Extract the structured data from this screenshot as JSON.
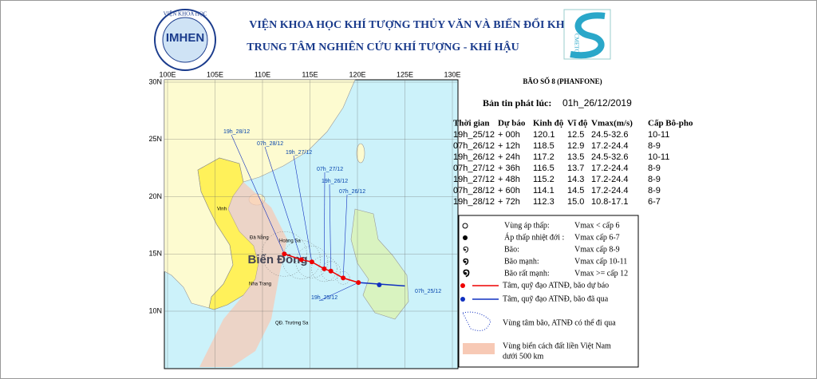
{
  "header": {
    "institute": "VIỆN KHOA HỌC KHÍ TƯỢNG THỦY VĂN VÀ BIẾN ĐỔI KHÍ HẬU",
    "center": "TRUNG TÂM NGHIÊN CỨU KHÍ TƯỢNG - KHÍ HẬU",
    "logo_left": "IMHEN",
    "logo_ring": "VIỆN KHOA HỌC",
    "logo_right": "CMETC"
  },
  "bulletin": {
    "title": "BÃO SỐ 8 (PHANFONE)",
    "issued_label": "Bản tin phát lúc:",
    "issued_time": "01h_26/12/2019"
  },
  "table": {
    "headers": [
      "Thời gian",
      "Dự báo",
      "Kinh độ",
      "Vĩ độ",
      "Vmax(m/s)",
      "Cấp Bô-pho"
    ],
    "rows": [
      [
        "19h_25/12",
        "+ 00h",
        "120.1",
        "12.5",
        "24.5-32.6",
        "10-11"
      ],
      [
        "07h_26/12",
        "+ 12h",
        "118.5",
        "12.9",
        "17.2-24.4",
        "8-9"
      ],
      [
        "19h_26/12",
        "+ 24h",
        "117.2",
        "13.5",
        "24.5-32.6",
        "10-11"
      ],
      [
        "07h_27/12",
        "+ 36h",
        "116.5",
        "13.7",
        "17.2-24.4",
        "8-9"
      ],
      [
        "19h_27/12",
        "+ 48h",
        "115.2",
        "14.3",
        "17.2-24.4",
        "8-9"
      ],
      [
        "07h_28/12",
        "+ 60h",
        "114.1",
        "14.5",
        "17.2-24.4",
        "8-9"
      ],
      [
        "19h_28/12",
        "+ 72h",
        "112.3",
        "15.0",
        "10.8-17.1",
        "6-7"
      ]
    ]
  },
  "map": {
    "lon_labels": [
      "100E",
      "105E",
      "110E",
      "115E",
      "120E",
      "125E",
      "130E"
    ],
    "lat_labels": [
      "30N",
      "25N",
      "20N",
      "15N",
      "10N"
    ],
    "places": [
      "Biển Đông",
      "Đà Nẵng",
      "Hoàng Sa",
      "Nha Trang",
      "Vinh",
      "QĐ. Trường Sa"
    ],
    "past_time": "07h_25/12"
  },
  "legend": {
    "items": [
      [
        "Vùng áp thấp:",
        "Vmax < cấp 6"
      ],
      [
        "Áp thấp nhiệt đới :",
        "Vmax cấp 6-7"
      ],
      [
        "Bão:",
        "Vmax cấp 8-9"
      ],
      [
        "Bão mạnh:",
        "Vmax cấp 10-11"
      ],
      [
        "Bão rất mạnh:",
        "Vmax >= cấp 12"
      ]
    ],
    "forecast": "Tâm, quỹ đạo ATNĐ, bão dự báo",
    "past": "Tâm, quỹ đạo ATNĐ, bão đã qua",
    "cone": "Vùng tâm bão, ATNĐ có thể đi qua",
    "zone": [
      "Vùng biển cách đất liền Việt Nam",
      "dưới 500 km"
    ]
  }
}
